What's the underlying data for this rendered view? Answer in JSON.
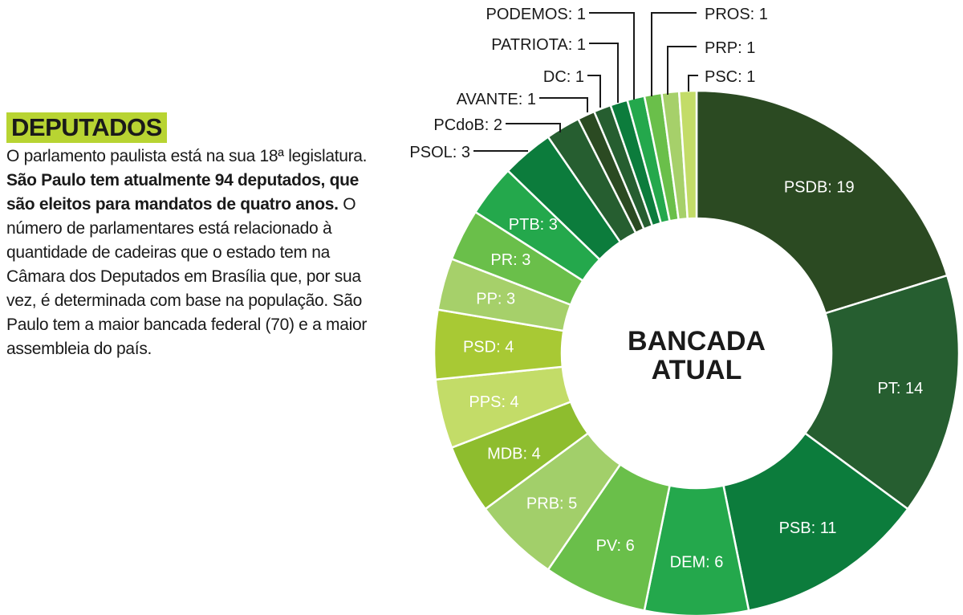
{
  "panel": {
    "heading": "DEPUTADOS",
    "text_part1": "O parlamento paulista está na sua 18ª legislatura. ",
    "text_bold": "São Paulo tem atualmente 94 deputados, que são eleitos para mandatos de quatro anos.",
    "text_part2": " O número de parlamentares está relacionado à quantidade de cadeiras que o estado tem na Câmara dos Deputados em Brasília que, por sua vez, é determinada com base na população. São Paulo tem a maior bancada federal (70) e a maior assembleia do país."
  },
  "chart_data": {
    "type": "pie",
    "donut": true,
    "center_label": [
      "BANCADA",
      "ATUAL"
    ],
    "total": 94,
    "slices": [
      {
        "label": "PSDB",
        "value": 19,
        "color": "#2b4a22",
        "text": "PSDB: 19"
      },
      {
        "label": "PT",
        "value": 14,
        "color": "#265e30",
        "text": "PT: 14"
      },
      {
        "label": "PSB",
        "value": 11,
        "color": "#0c7c3c",
        "text": "PSB: 11"
      },
      {
        "label": "DEM",
        "value": 6,
        "color": "#24a84c",
        "text": "DEM: 6"
      },
      {
        "label": "PV",
        "value": 6,
        "color": "#6abf4a",
        "text": "PV: 6"
      },
      {
        "label": "PRB",
        "value": 5,
        "color": "#a2cf6a",
        "text": "PRB: 5"
      },
      {
        "label": "MDB",
        "value": 4,
        "color": "#8ebd2e",
        "text": "MDB: 4"
      },
      {
        "label": "PPS",
        "value": 4,
        "color": "#c3dc68",
        "text": "PPS: 4"
      },
      {
        "label": "PSD",
        "value": 4,
        "color": "#a8c934",
        "text": "PSD: 4"
      },
      {
        "label": "PP",
        "value": 3,
        "color": "#a6d06a",
        "text": "PP: 3"
      },
      {
        "label": "PR",
        "value": 3,
        "color": "#6abf4a",
        "text": "PR: 3"
      },
      {
        "label": "PTB",
        "value": 3,
        "color": "#24a84c",
        "text": "PTB: 3"
      },
      {
        "label": "PSOL",
        "value": 3,
        "color": "#0c7c3c",
        "text": "PSOL: 3"
      },
      {
        "label": "PCdoB",
        "value": 2,
        "color": "#265e30",
        "text": "PCdoB: 2"
      },
      {
        "label": "AVANTE",
        "value": 1,
        "color": "#2b4a22",
        "text": "AVANTE: 1"
      },
      {
        "label": "DC",
        "value": 1,
        "color": "#265e30",
        "text": "DC: 1"
      },
      {
        "label": "PATRIOTA",
        "value": 1,
        "color": "#0c7c3c",
        "text": "PATRIOTA: 1"
      },
      {
        "label": "PODEMOS",
        "value": 1,
        "color": "#24a84c",
        "text": "PODEMOS: 1"
      },
      {
        "label": "PROS",
        "value": 1,
        "color": "#6abf4a",
        "text": "PROS: 1"
      },
      {
        "label": "PRP",
        "value": 1,
        "color": "#a6d06a",
        "text": "PRP: 1"
      },
      {
        "label": "PSC",
        "value": 1,
        "color": "#c3dc68",
        "text": "PSC: 1"
      }
    ]
  }
}
